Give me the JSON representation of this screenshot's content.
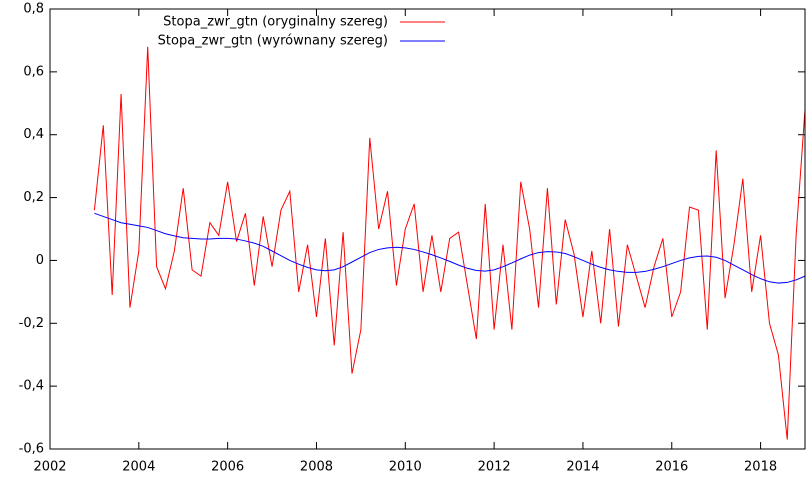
{
  "chart_data": {
    "type": "line",
    "x": [
      2003.0,
      2003.2,
      2003.4,
      2003.6,
      2003.8,
      2004.0,
      2004.2,
      2004.4,
      2004.6,
      2004.8,
      2005.0,
      2005.2,
      2005.4,
      2005.6,
      2005.8,
      2006.0,
      2006.2,
      2006.4,
      2006.6,
      2006.8,
      2007.0,
      2007.2,
      2007.4,
      2007.6,
      2007.8,
      2008.0,
      2008.2,
      2008.4,
      2008.6,
      2008.8,
      2009.0,
      2009.2,
      2009.4,
      2009.6,
      2009.8,
      2010.0,
      2010.2,
      2010.4,
      2010.6,
      2010.8,
      2011.0,
      2011.2,
      2011.4,
      2011.6,
      2011.8,
      2012.0,
      2012.2,
      2012.4,
      2012.6,
      2012.8,
      2013.0,
      2013.2,
      2013.4,
      2013.6,
      2013.8,
      2014.0,
      2014.2,
      2014.4,
      2014.6,
      2014.8,
      2015.0,
      2015.2,
      2015.4,
      2015.6,
      2015.8,
      2016.0,
      2016.2,
      2016.4,
      2016.6,
      2016.8,
      2017.0,
      2017.2,
      2017.4,
      2017.6,
      2017.8,
      2018.0,
      2018.2,
      2018.4,
      2018.6,
      2018.8,
      2019.0
    ],
    "series": [
      {
        "name": "Stopa_zwr_gtn (oryginalny szereg)",
        "color": "#ff0000",
        "values": [
          0.16,
          0.43,
          -0.11,
          0.53,
          -0.15,
          0.03,
          0.68,
          -0.02,
          -0.09,
          0.03,
          0.23,
          -0.03,
          -0.05,
          0.12,
          0.08,
          0.25,
          0.06,
          0.15,
          -0.08,
          0.14,
          -0.02,
          0.16,
          0.22,
          -0.1,
          0.05,
          -0.18,
          0.07,
          -0.27,
          0.09,
          -0.36,
          -0.22,
          0.39,
          0.1,
          0.22,
          -0.08,
          0.1,
          0.18,
          -0.1,
          0.08,
          -0.1,
          0.07,
          0.09,
          -0.08,
          -0.25,
          0.18,
          -0.22,
          0.05,
          -0.22,
          0.25,
          0.1,
          -0.15,
          0.23,
          -0.14,
          0.13,
          0.02,
          -0.18,
          0.03,
          -0.2,
          0.1,
          -0.21,
          0.05,
          -0.05,
          -0.15,
          -0.02,
          0.07,
          -0.18,
          -0.1,
          0.17,
          0.16,
          -0.22,
          0.35,
          -0.12,
          0.05,
          0.26,
          -0.1,
          0.08,
          -0.2,
          -0.3,
          -0.57,
          0.08,
          0.48
        ]
      },
      {
        "name": "Stopa_zwr_gtn (wyrównany szereg)",
        "color": "#0000ff",
        "values": [
          0.15,
          0.14,
          0.13,
          0.12,
          0.115,
          0.11,
          0.105,
          0.095,
          0.085,
          0.078,
          0.072,
          0.07,
          0.068,
          0.068,
          0.07,
          0.07,
          0.068,
          0.062,
          0.055,
          0.045,
          0.03,
          0.015,
          0.0,
          -0.012,
          -0.022,
          -0.03,
          -0.033,
          -0.03,
          -0.02,
          -0.005,
          0.01,
          0.025,
          0.035,
          0.04,
          0.042,
          0.04,
          0.035,
          0.027,
          0.018,
          0.008,
          -0.003,
          -0.015,
          -0.025,
          -0.032,
          -0.034,
          -0.03,
          -0.02,
          -0.008,
          0.005,
          0.017,
          0.025,
          0.028,
          0.027,
          0.022,
          0.012,
          0.0,
          -0.012,
          -0.022,
          -0.03,
          -0.035,
          -0.038,
          -0.038,
          -0.035,
          -0.028,
          -0.02,
          -0.01,
          0.0,
          0.008,
          0.013,
          0.014,
          0.01,
          0.0,
          -0.015,
          -0.03,
          -0.045,
          -0.058,
          -0.068,
          -0.072,
          -0.07,
          -0.062,
          -0.05
        ]
      }
    ],
    "xlim": [
      2002,
      2019
    ],
    "xticks": [
      2002,
      2004,
      2006,
      2008,
      2010,
      2012,
      2014,
      2016,
      2018
    ],
    "ylim": [
      -0.6,
      0.8
    ],
    "yticks": [
      {
        "value": -0.6,
        "label": "-0,6"
      },
      {
        "value": -0.4,
        "label": "-0,4"
      },
      {
        "value": -0.2,
        "label": "-0,2"
      },
      0,
      {
        "value": 0.2,
        "label": "0,2"
      },
      {
        "value": 0.4,
        "label": "0,4"
      },
      {
        "value": 0.6,
        "label": "0,6"
      },
      {
        "value": 0.8,
        "label": "0,8"
      }
    ],
    "legend": "top-left"
  }
}
